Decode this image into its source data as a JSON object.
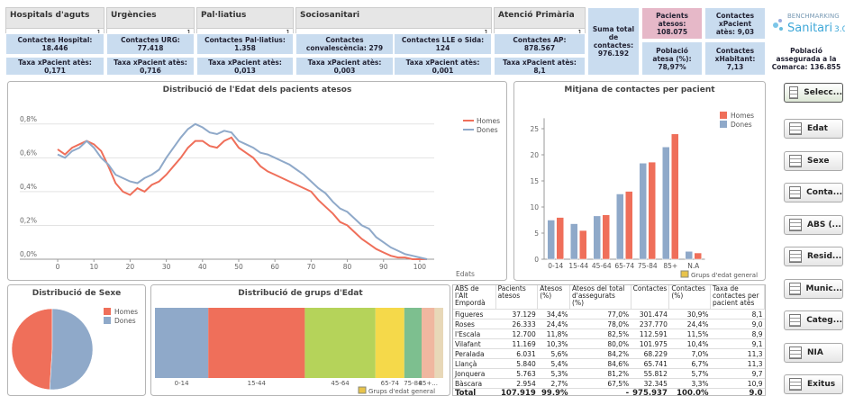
{
  "header": {
    "groups": [
      {
        "title": "Hospitals d'aguts",
        "count": 1,
        "items": [
          "Contactes Hospital: 18.446",
          "Taxa xPacient atès: 0,171"
        ]
      },
      {
        "title": "Urgències",
        "count": 1,
        "items": [
          "Contactes URG: 77.418",
          "Taxa xPacient atès: 0,716"
        ]
      },
      {
        "title": "Pal·liatius",
        "count": 1,
        "items": [
          "Contactes Pal·liatius: 1.358",
          "Taxa xPacient atès: 0,013"
        ]
      },
      {
        "title": "Sociosanitari",
        "count": 1,
        "items": [
          "Contactes convalescència: 279",
          "Contactes LLE o Sida: 124",
          "Taxa xPacient atès: 0,003",
          "Taxa xPacient atès: 0,001"
        ]
      },
      {
        "title": "Atenció Primària",
        "count": 1,
        "items": [
          "Contactes AP: 878.567",
          "Taxa xPacient atès: 8,1"
        ]
      }
    ]
  },
  "summary": {
    "total_contacts": "Suma total de contactes: 976.192",
    "patients": "Pacients atesos: 108.075",
    "population_served": "Població atesa (%): 78,97%",
    "contacts_per_patient": "Contactes xPacient atès: 9,03",
    "contacts_per_inhabitant": "Contactes xHabitant: 7,13",
    "insured_population": "Població assegurada a la Comarca: 136.855"
  },
  "logo": {
    "top": "BENCHMARKING",
    "main": "Sanitari",
    "version": "3.0"
  },
  "buttons": [
    "Selecc...",
    "Edat",
    "Sexe",
    "Conta...",
    "ABS (...",
    "Resid...",
    "Munic...",
    "Categ...",
    "NIA",
    "Exitus"
  ],
  "table": {
    "header": [
      "ABS de l'Alt Empordà",
      "Pacients atesos",
      "Atesos (%)",
      "Atesos del total d'assegurats (%)",
      "Contactes",
      "Contactes (%)",
      "Taxa de contactes per pacient atès"
    ],
    "rows": [
      [
        "Figueres",
        "37.129",
        "34,4%",
        "77,0%",
        "301.474",
        "30,9%",
        "8,1"
      ],
      [
        "Roses",
        "26.333",
        "24,4%",
        "78,0%",
        "237.770",
        "24,4%",
        "9,0"
      ],
      [
        "l'Escala",
        "12.700",
        "11,8%",
        "82,5%",
        "112.591",
        "11,5%",
        "8,9"
      ],
      [
        "Vilafant",
        "11.169",
        "10,3%",
        "80,0%",
        "101.975",
        "10,4%",
        "9,1"
      ],
      [
        "Peralada",
        "6.031",
        "5,6%",
        "84,2%",
        "68.229",
        "7,0%",
        "11,3"
      ],
      [
        "Llançà",
        "5.840",
        "5,4%",
        "84,6%",
        "65.741",
        "6,7%",
        "11,3"
      ],
      [
        "Jonquera",
        "5.763",
        "5,3%",
        "81,2%",
        "55.812",
        "5,7%",
        "9,7"
      ],
      [
        "Bàscara",
        "2.954",
        "2,7%",
        "67,5%",
        "32.345",
        "3,3%",
        "10,9"
      ],
      [
        "Total",
        "107.919",
        "99,9%",
        "-",
        "975.937",
        "100,0%",
        "9,0"
      ]
    ]
  },
  "chart_data": [
    {
      "type": "line",
      "title": "Distribució de l'Edat dels pacients atesos",
      "x": [
        0,
        2,
        4,
        6,
        8,
        10,
        12,
        14,
        16,
        18,
        20,
        22,
        24,
        26,
        28,
        30,
        32,
        34,
        36,
        38,
        40,
        42,
        44,
        46,
        48,
        50,
        52,
        54,
        56,
        58,
        60,
        62,
        64,
        66,
        68,
        70,
        72,
        74,
        76,
        78,
        80,
        82,
        84,
        86,
        88,
        90,
        92,
        94,
        96,
        98,
        100,
        102
      ],
      "series": [
        {
          "name": "Homes",
          "color": "#ef6f5a",
          "values": [
            0.65,
            0.62,
            0.66,
            0.68,
            0.7,
            0.68,
            0.64,
            0.55,
            0.45,
            0.4,
            0.38,
            0.42,
            0.4,
            0.44,
            0.46,
            0.5,
            0.55,
            0.6,
            0.66,
            0.7,
            0.7,
            0.67,
            0.66,
            0.7,
            0.72,
            0.66,
            0.63,
            0.6,
            0.55,
            0.52,
            0.5,
            0.48,
            0.46,
            0.44,
            0.42,
            0.4,
            0.35,
            0.31,
            0.27,
            0.22,
            0.2,
            0.16,
            0.12,
            0.09,
            0.06,
            0.04,
            0.02,
            0.01,
            0.01,
            0,
            0,
            0
          ]
        },
        {
          "name": "Dones",
          "color": "#8fa9c9",
          "values": [
            0.62,
            0.6,
            0.64,
            0.66,
            0.7,
            0.66,
            0.6,
            0.56,
            0.5,
            0.48,
            0.46,
            0.45,
            0.48,
            0.5,
            0.53,
            0.6,
            0.66,
            0.72,
            0.77,
            0.8,
            0.78,
            0.75,
            0.74,
            0.76,
            0.75,
            0.7,
            0.68,
            0.66,
            0.63,
            0.62,
            0.6,
            0.58,
            0.56,
            0.53,
            0.5,
            0.46,
            0.42,
            0.39,
            0.34,
            0.3,
            0.28,
            0.24,
            0.2,
            0.18,
            0.13,
            0.1,
            0.07,
            0.05,
            0.03,
            0.02,
            0.01,
            0
          ]
        }
      ],
      "xlim": [
        -2,
        104
      ],
      "xticks": [
        0,
        10,
        20,
        30,
        40,
        50,
        60,
        70,
        80,
        90,
        100
      ],
      "ylim": [
        0,
        0.9
      ],
      "yticks": [
        {
          "value": 0,
          "label": "0,0%"
        },
        {
          "value": 0.2,
          "label": "0,2%"
        },
        {
          "value": 0.4,
          "label": "0,4%"
        },
        {
          "value": 0.6,
          "label": "0,6%"
        },
        {
          "value": 0.8,
          "label": "0,8%"
        }
      ],
      "x_label": "Edats",
      "grid": true,
      "legend": "top-right"
    },
    {
      "type": "bar",
      "title": "Mitjana de contactes per pacient",
      "categories": [
        "0-14",
        "15-44",
        "45-64",
        "65-74",
        "75-84",
        "85+",
        "N.A"
      ],
      "series": [
        {
          "name": "Homes",
          "color": "#ef6f5a",
          "values": [
            8,
            5.5,
            8.5,
            13,
            18.6,
            24,
            1.2
          ]
        },
        {
          "name": "Dones",
          "color": "#8fa9c9",
          "values": [
            7.5,
            6.8,
            8.3,
            12.5,
            18.4,
            21.5,
            1.5
          ]
        }
      ],
      "ylim": [
        0,
        27
      ],
      "yticks": [
        0,
        5,
        10,
        15,
        20,
        25
      ],
      "x_label": "Grups d'edat general",
      "grid": false,
      "legend": "top-right"
    },
    {
      "type": "pie",
      "title": "Distribució de Sexe",
      "categories": [
        "Homes",
        "Dones"
      ],
      "values": [
        49,
        51
      ],
      "colors": [
        "#ef6f5a",
        "#8fa9c9"
      ],
      "legend": "top-right"
    },
    {
      "type": "stacked-bar",
      "title": "Distribució de grups d'Edat",
      "categories": [
        "0-14",
        "15-44",
        "45-64",
        "65-74",
        "75-84",
        "85+...",
        null
      ],
      "values": [
        18.5,
        33.5,
        24.5,
        10,
        6,
        4.5,
        3
      ],
      "colors": [
        "#8fa9c9",
        "#ef6f5a",
        "#b5d35a",
        "#f5d94a",
        "#7dbf8f",
        "#f0b7a0",
        "#e8d8b8"
      ],
      "xlim": [
        0,
        100
      ],
      "x_label": "Grups d'edat general"
    }
  ]
}
